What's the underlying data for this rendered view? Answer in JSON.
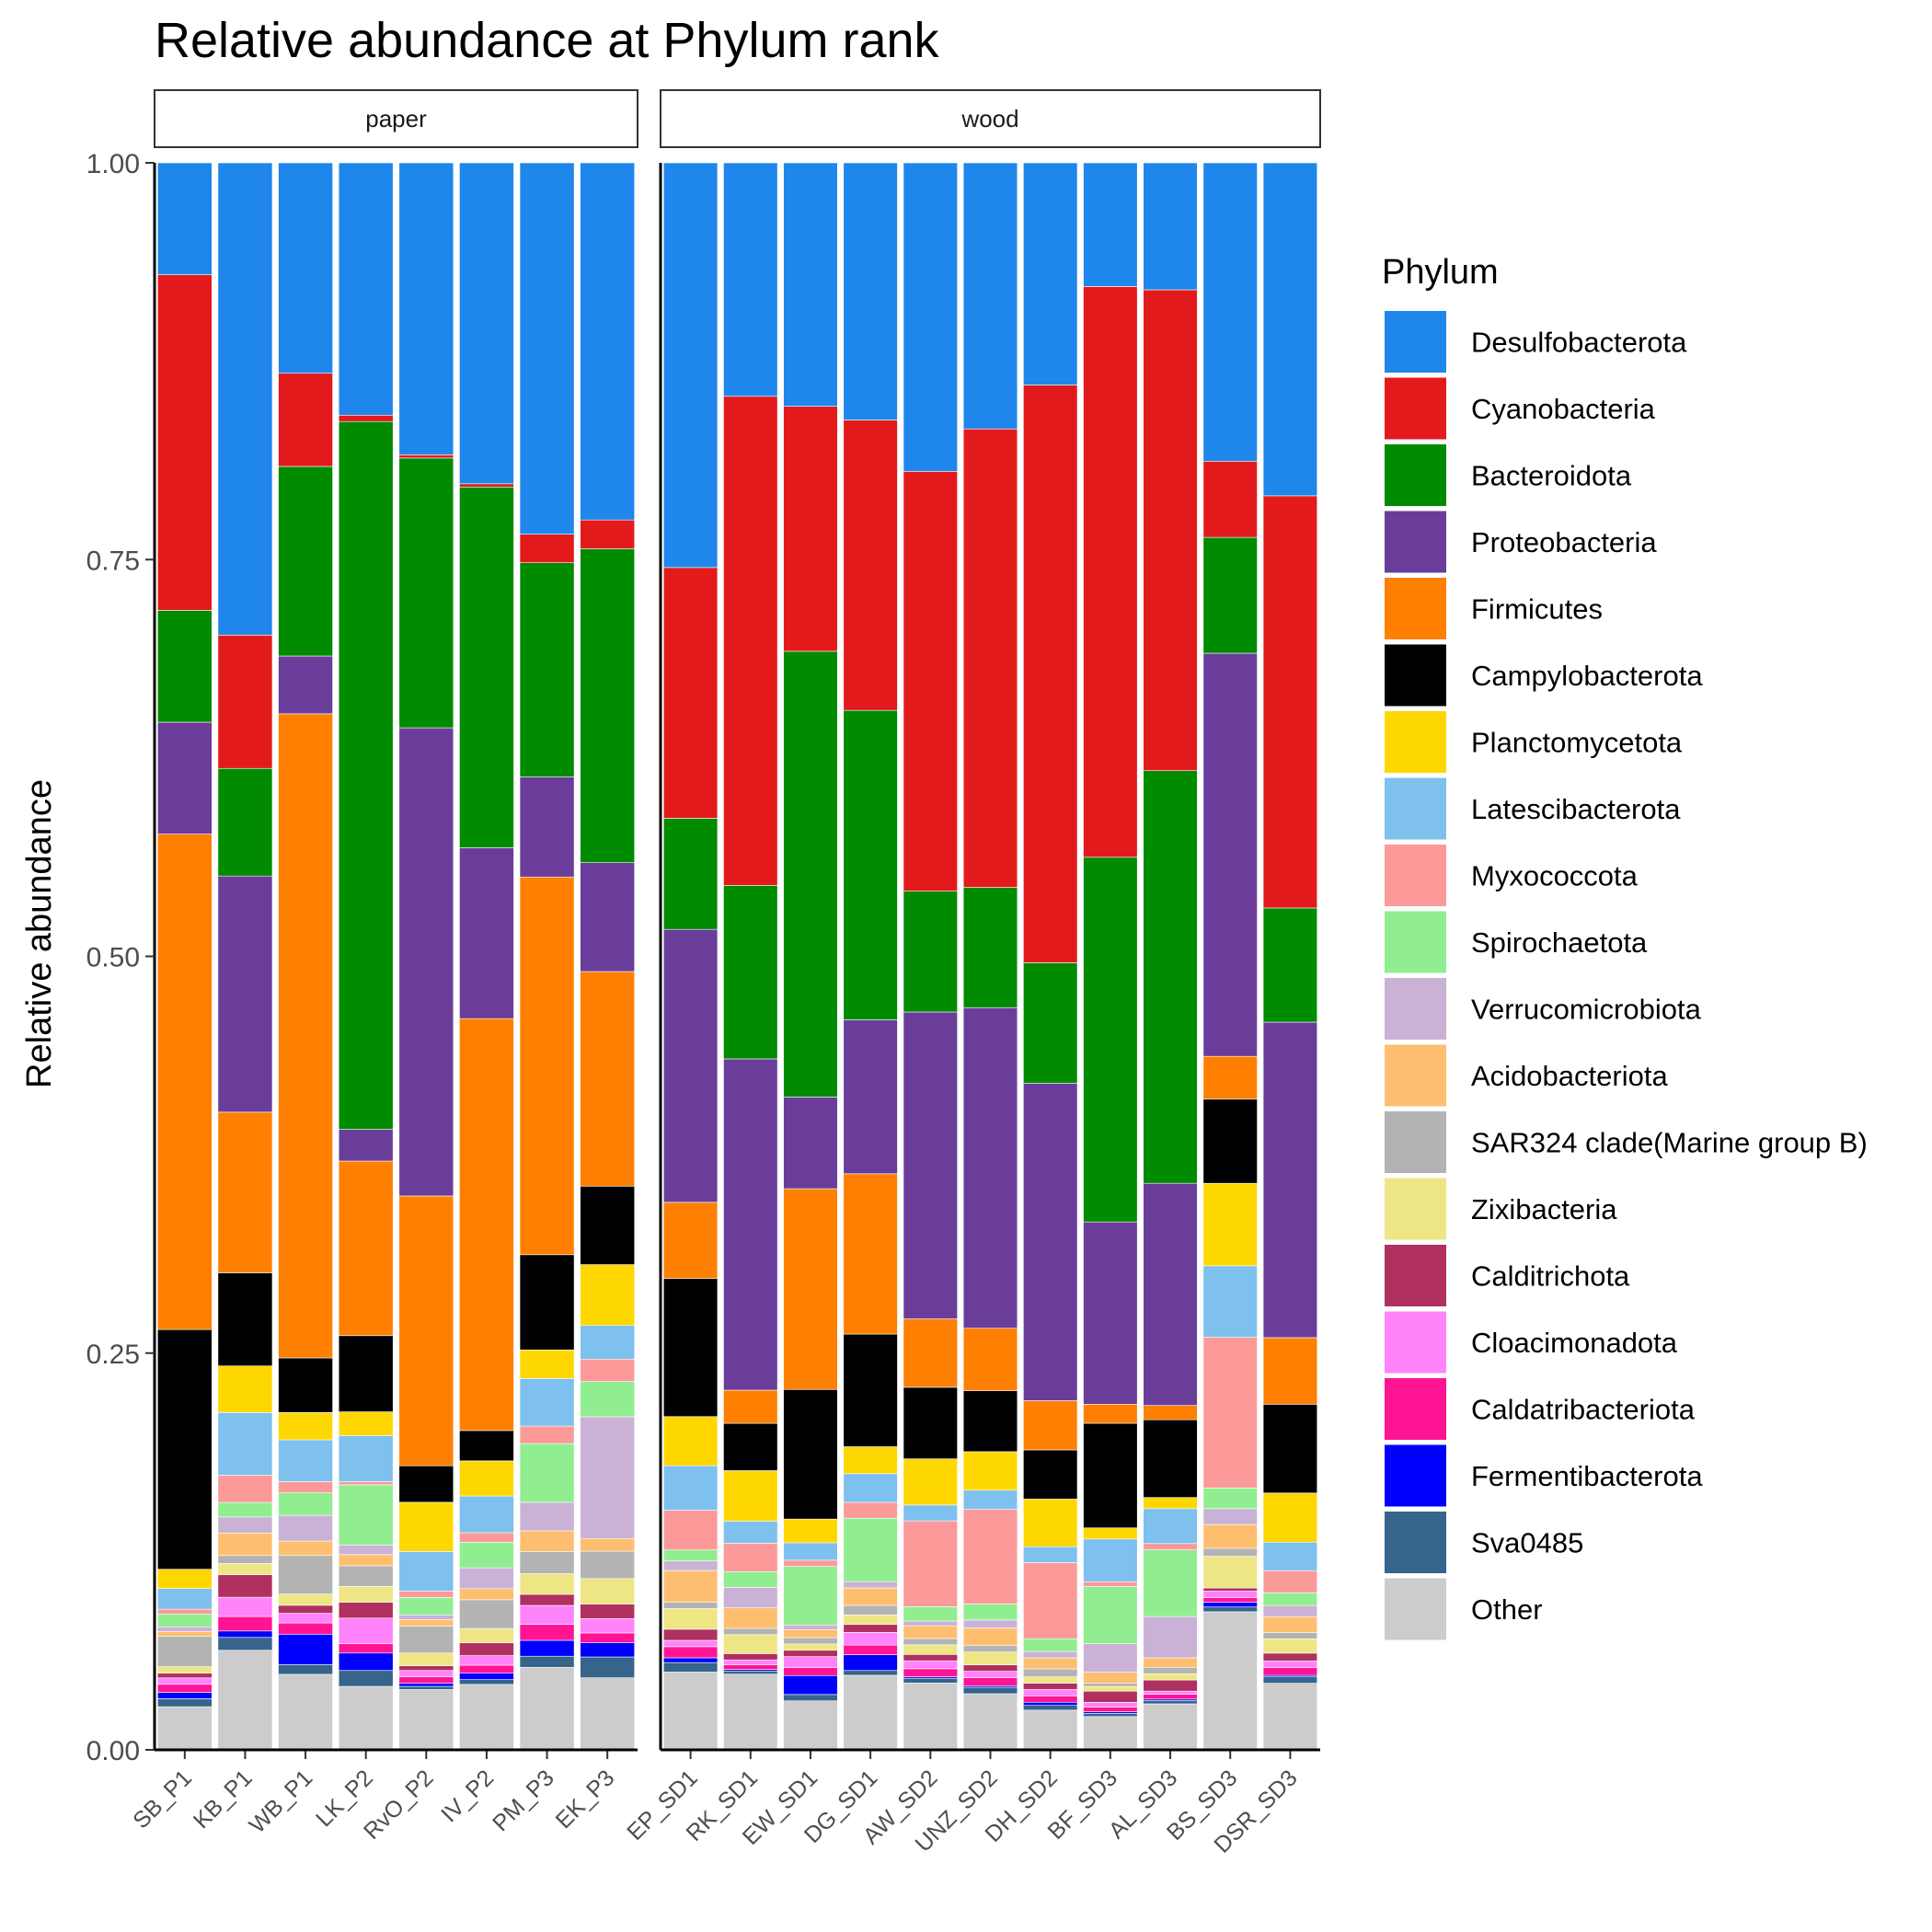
{
  "chart_data": {
    "type": "bar",
    "stacked": true,
    "title": "Relative abundance at Phylum rank",
    "ylabel": "Relative abundance",
    "xlabel": "",
    "ylim": [
      0,
      1
    ],
    "yticks": [
      "0.00",
      "0.25",
      "0.50",
      "0.75",
      "1.00"
    ],
    "grid": false,
    "legend": {
      "title": "Phylum",
      "placement": "right"
    },
    "stack_order_bottom_to_top": [
      "Other",
      "Sva0485",
      "Fermentibacterota",
      "Caldatribacteriota",
      "Cloacimonadota",
      "Calditrichota",
      "Zixibacteria",
      "SAR324 clade(Marine group B)",
      "Acidobacteriota",
      "Verrucomicrobiota",
      "Spirochaetota",
      "Myxococcota",
      "Latescibacterota",
      "Planctomycetota",
      "Campylobacterota",
      "Firmicutes",
      "Proteobacteria",
      "Bacteroidota",
      "Cyanobacteria",
      "Desulfobacterota"
    ],
    "series": [
      {
        "name": "Desulfobacterota",
        "color": "#1F86EC"
      },
      {
        "name": "Cyanobacteria",
        "color": "#E31A1C"
      },
      {
        "name": "Bacteroidota",
        "color": "#008B00"
      },
      {
        "name": "Proteobacteria",
        "color": "#6A3D9A"
      },
      {
        "name": "Firmicutes",
        "color": "#FF7F00"
      },
      {
        "name": "Campylobacterota",
        "color": "#000000"
      },
      {
        "name": "Planctomycetota",
        "color": "#FFD700"
      },
      {
        "name": "Latescibacterota",
        "color": "#7EC0EE"
      },
      {
        "name": "Myxococcota",
        "color": "#FB9A99"
      },
      {
        "name": "Spirochaetota",
        "color": "#90EE90"
      },
      {
        "name": "Verrucomicrobiota",
        "color": "#CAB2D6"
      },
      {
        "name": "Acidobacteriota",
        "color": "#FDBF6F"
      },
      {
        "name": "SAR324 clade(Marine group B)",
        "color": "#B3B3B3"
      },
      {
        "name": "Zixibacteria",
        "color": "#EEE685"
      },
      {
        "name": "Calditrichota",
        "color": "#B03060"
      },
      {
        "name": "Cloacimonadota",
        "color": "#FF83FA"
      },
      {
        "name": "Caldatribacteriota",
        "color": "#FF1493"
      },
      {
        "name": "Fermentibacterota",
        "color": "#0000FF"
      },
      {
        "name": "Sva0485",
        "color": "#36648B"
      },
      {
        "name": "Other",
        "color": "#CCCCCC"
      }
    ],
    "panels": [
      {
        "label": "paper",
        "samples": [
          {
            "name": "SB_P1",
            "values": {
              "Other": 0.027,
              "Sva0485": 0.005,
              "Fermentibacterota": 0.004,
              "Caldatribacteriota": 0.005,
              "Cloacimonadota": 0.004,
              "Calditrichota": 0.003,
              "Zixibacteria": 0.004,
              "SAR324 clade(Marine group B)": 0.019,
              "Acidobacteriota": 0.003,
              "Verrucomicrobiota": 0.003,
              "Spirochaetota": 0.008,
              "Myxococcota": 0.003,
              "Latescibacterota": 0.013,
              "Planctomycetota": 0.012,
              "Campylobacterota": 0.15,
              "Firmicutes": 0.31,
              "Proteobacteria": 0.07,
              "Bacteroidota": 0.07,
              "Cyanobacteria": 0.21,
              "Desulfobacterota": 0.07
            }
          },
          {
            "name": "KB_P1",
            "values": {
              "Other": 0.062,
              "Sva0485": 0.008,
              "Fermentibacterota": 0.004,
              "Caldatribacteriota": 0.009,
              "Cloacimonadota": 0.012,
              "Calditrichota": 0.014,
              "Zixibacteria": 0.007,
              "SAR324 clade(Marine group B)": 0.005,
              "Acidobacteriota": 0.014,
              "Verrucomicrobiota": 0.01,
              "Spirochaetota": 0.009,
              "Myxococcota": 0.017,
              "Latescibacterota": 0.039,
              "Planctomycetota": 0.029,
              "Campylobacterota": 0.058,
              "Firmicutes": 0.1,
              "Proteobacteria": 0.147,
              "Bacteroidota": 0.067,
              "Cyanobacteria": 0.083,
              "Desulfobacterota": 0.294
            }
          },
          {
            "name": "WB_P1",
            "values": {
              "Other": 0.047,
              "Sva0485": 0.006,
              "Fermentibacterota": 0.019,
              "Caldatribacteriota": 0.007,
              "Cloacimonadota": 0.006,
              "Calditrichota": 0.005,
              "Zixibacteria": 0.007,
              "SAR324 clade(Marine group B)": 0.024,
              "Acidobacteriota": 0.009,
              "Verrucomicrobiota": 0.016,
              "Spirochaetota": 0.014,
              "Myxococcota": 0.007,
              "Latescibacterota": 0.026,
              "Planctomycetota": 0.017,
              "Campylobacterota": 0.034,
              "Firmicutes": 0.401,
              "Proteobacteria": 0.036,
              "Bacteroidota": 0.118,
              "Cyanobacteria": 0.058,
              "Desulfobacterota": 0.131
            }
          },
          {
            "name": "LK_P2",
            "values": {
              "Other": 0.04,
              "Sva0485": 0.01,
              "Fermentibacterota": 0.011,
              "Caldatribacteriota": 0.006,
              "Cloacimonadota": 0.016,
              "Calditrichota": 0.01,
              "Zixibacteria": 0.01,
              "SAR324 clade(Marine group B)": 0.013,
              "Acidobacteriota": 0.007,
              "Verrucomicrobiota": 0.006,
              "Spirochaetota": 0.038,
              "Myxococcota": 0.002,
              "Latescibacterota": 0.029,
              "Planctomycetota": 0.015,
              "Campylobacterota": 0.048,
              "Firmicutes": 0.11,
              "Proteobacteria": 0.02,
              "Bacteroidota": 0.446,
              "Cyanobacteria": 0.004,
              "Desulfobacterota": 0.159
            }
          },
          {
            "name": "RvO_P2",
            "values": {
              "Other": 0.038,
              "Sva0485": 0.002,
              "Fermentibacterota": 0.002,
              "Caldatribacteriota": 0.004,
              "Cloacimonadota": 0.004,
              "Calditrichota": 0.003,
              "Zixibacteria": 0.008,
              "SAR324 clade(Marine group B)": 0.017,
              "Acidobacteriota": 0.004,
              "Verrucomicrobiota": 0.003,
              "Spirochaetota": 0.011,
              "Myxococcota": 0.004,
              "Latescibacterota": 0.025,
              "Planctomycetota": 0.031,
              "Campylobacterota": 0.023,
              "Firmicutes": 0.17,
              "Proteobacteria": 0.295,
              "Bacteroidota": 0.17,
              "Cyanobacteria": 0.002,
              "Desulfobacterota": 0.184
            }
          },
          {
            "name": "IV_P2",
            "values": {
              "Other": 0.041,
              "Sva0485": 0.003,
              "Fermentibacterota": 0.004,
              "Caldatribacteriota": 0.005,
              "Cloacimonadota": 0.006,
              "Calditrichota": 0.008,
              "Zixibacteria": 0.009,
              "SAR324 clade(Marine group B)": 0.018,
              "Acidobacteriota": 0.007,
              "Verrucomicrobiota": 0.013,
              "Spirochaetota": 0.016,
              "Myxococcota": 0.006,
              "Latescibacterota": 0.023,
              "Planctomycetota": 0.022,
              "Campylobacterota": 0.019,
              "Firmicutes": 0.258,
              "Proteobacteria": 0.107,
              "Bacteroidota": 0.226,
              "Cyanobacteria": 0.002,
              "Desulfobacterota": 0.201
            }
          },
          {
            "name": "PM_P3",
            "values": {
              "Other": 0.052,
              "Sva0485": 0.007,
              "Fermentibacterota": 0.01,
              "Caldatribacteriota": 0.01,
              "Cloacimonadota": 0.012,
              "Calditrichota": 0.007,
              "Zixibacteria": 0.013,
              "SAR324 clade(Marine group B)": 0.014,
              "Acidobacteriota": 0.013,
              "Verrucomicrobiota": 0.018,
              "Spirochaetota": 0.037,
              "Myxococcota": 0.011,
              "Latescibacterota": 0.03,
              "Planctomycetota": 0.018,
              "Campylobacterota": 0.06,
              "Firmicutes": 0.238,
              "Proteobacteria": 0.063,
              "Bacteroidota": 0.135,
              "Cyanobacteria": 0.018,
              "Desulfobacterota": 0.234
            }
          },
          {
            "name": "EK_P3",
            "values": {
              "Other": 0.045,
              "Sva0485": 0.013,
              "Fermentibacterota": 0.009,
              "Caldatribacteriota": 0.006,
              "Cloacimonadota": 0.009,
              "Calditrichota": 0.009,
              "Zixibacteria": 0.016,
              "SAR324 clade(Marine group B)": 0.017,
              "Acidobacteriota": 0.008,
              "Verrucomicrobiota": 0.076,
              "Spirochaetota": 0.022,
              "Myxococcota": 0.014,
              "Latescibacterota": 0.021,
              "Planctomycetota": 0.038,
              "Campylobacterota": 0.049,
              "Firmicutes": 0.134,
              "Proteobacteria": 0.068,
              "Bacteroidota": 0.196,
              "Cyanobacteria": 0.018,
              "Desulfobacterota": 0.223
            }
          }
        ]
      },
      {
        "label": "wood",
        "samples": [
          {
            "name": "EP_SD1",
            "values": {
              "Other": 0.049,
              "Sva0485": 0.006,
              "Fermentibacterota": 0.003,
              "Caldatribacteriota": 0.007,
              "Cloacimonadota": 0.004,
              "Calditrichota": 0.007,
              "Zixibacteria": 0.013,
              "SAR324 clade(Marine group B)": 0.004,
              "Acidobacteriota": 0.02,
              "Verrucomicrobiota": 0.006,
              "Spirochaetota": 0.007,
              "Myxococcota": 0.025,
              "Latescibacterota": 0.028,
              "Planctomycetota": 0.031,
              "Campylobacterota": 0.087,
              "Firmicutes": 0.048,
              "Proteobacteria": 0.172,
              "Bacteroidota": 0.07,
              "Cyanobacteria": 0.158,
              "Desulfobacterota": 0.255
            }
          },
          {
            "name": "RK_SD1",
            "values": {
              "Other": 0.048,
              "Sva0485": 0.002,
              "Fermentibacterota": 0.001,
              "Caldatribacteriota": 0.003,
              "Cloacimonadota": 0.003,
              "Calditrichota": 0.004,
              "Zixibacteria": 0.012,
              "SAR324 clade(Marine group B)": 0.004,
              "Acidobacteriota": 0.013,
              "Verrucomicrobiota": 0.013,
              "Spirochaetota": 0.01,
              "Myxococcota": 0.018,
              "Latescibacterota": 0.014,
              "Planctomycetota": 0.032,
              "Campylobacterota": 0.03,
              "Firmicutes": 0.021,
              "Proteobacteria": 0.21,
              "Bacteroidota": 0.11,
              "Cyanobacteria": 0.31,
              "Desulfobacterota": 0.148
            }
          },
          {
            "name": "EW_SD1",
            "values": {
              "Other": 0.031,
              "Sva0485": 0.004,
              "Fermentibacterota": 0.012,
              "Caldatribacteriota": 0.005,
              "Cloacimonadota": 0.007,
              "Calditrichota": 0.004,
              "Zixibacteria": 0.004,
              "SAR324 clade(Marine group B)": 0.004,
              "Acidobacteriota": 0.005,
              "Verrucomicrobiota": 0.003,
              "Spirochaetota": 0.037,
              "Myxococcota": 0.004,
              "Latescibacterota": 0.011,
              "Planctomycetota": 0.015,
              "Campylobacterota": 0.082,
              "Firmicutes": 0.127,
              "Proteobacteria": 0.058,
              "Bacteroidota": 0.282,
              "Cyanobacteria": 0.155,
              "Desulfobacterota": 0.154
            }
          },
          {
            "name": "DG_SD1",
            "values": {
              "Other": 0.047,
              "Sva0485": 0.003,
              "Fermentibacterota": 0.01,
              "Caldatribacteriota": 0.006,
              "Cloacimonadota": 0.008,
              "Calditrichota": 0.005,
              "Zixibacteria": 0.006,
              "SAR324 clade(Marine group B)": 0.006,
              "Acidobacteriota": 0.011,
              "Verrucomicrobiota": 0.004,
              "Spirochaetota": 0.04,
              "Myxococcota": 0.01,
              "Latescibacterota": 0.018,
              "Planctomycetota": 0.017,
              "Campylobacterota": 0.071,
              "Firmicutes": 0.101,
              "Proteobacteria": 0.097,
              "Bacteroidota": 0.195,
              "Cyanobacteria": 0.183,
              "Desulfobacterota": 0.162
            }
          },
          {
            "name": "AW_SD2",
            "values": {
              "Other": 0.042,
              "Sva0485": 0.003,
              "Fermentibacterota": 0.001,
              "Caldatribacteriota": 0.005,
              "Cloacimonadota": 0.005,
              "Calditrichota": 0.004,
              "Zixibacteria": 0.006,
              "SAR324 clade(Marine group B)": 0.004,
              "Acidobacteriota": 0.008,
              "Verrucomicrobiota": 0.003,
              "Spirochaetota": 0.009,
              "Myxococcota": 0.054,
              "Latescibacterota": 0.01,
              "Planctomycetota": 0.029,
              "Campylobacterota": 0.045,
              "Firmicutes": 0.043,
              "Proteobacteria": 0.193,
              "Bacteroidota": 0.076,
              "Cyanobacteria": 0.264,
              "Desulfobacterota": 0.194
            }
          },
          {
            "name": "UNZ_SD2",
            "values": {
              "Other": 0.035,
              "Sva0485": 0.004,
              "Fermentibacterota": 0.001,
              "Caldatribacteriota": 0.005,
              "Cloacimonadota": 0.004,
              "Calditrichota": 0.004,
              "Zixibacteria": 0.008,
              "SAR324 clade(Marine group B)": 0.004,
              "Acidobacteriota": 0.011,
              "Verrucomicrobiota": 0.005,
              "Spirochaetota": 0.01,
              "Myxococcota": 0.059,
              "Latescibacterota": 0.012,
              "Planctomycetota": 0.024,
              "Campylobacterota": 0.038,
              "Firmicutes": 0.039,
              "Proteobacteria": 0.2,
              "Bacteroidota": 0.075,
              "Cyanobacteria": 0.286,
              "Desulfobacterota": 0.166
            }
          },
          {
            "name": "DH_SD2",
            "values": {
              "Other": 0.025,
              "Sva0485": 0.003,
              "Fermentibacterota": 0.002,
              "Caldatribacteriota": 0.004,
              "Cloacimonadota": 0.004,
              "Calditrichota": 0.004,
              "Zixibacteria": 0.004,
              "SAR324 clade(Marine group B)": 0.005,
              "Acidobacteriota": 0.007,
              "Verrucomicrobiota": 0.004,
              "Spirochaetota": 0.008,
              "Myxococcota": 0.048,
              "Latescibacterota": 0.01,
              "Planctomycetota": 0.03,
              "Campylobacterota": 0.031,
              "Firmicutes": 0.031,
              "Proteobacteria": 0.2,
              "Bacteroidota": 0.076,
              "Cyanobacteria": 0.364,
              "Desulfobacterota": 0.14
            }
          },
          {
            "name": "BF_SD3",
            "values": {
              "Other": 0.021,
              "Sva0485": 0.002,
              "Fermentibacterota": 0.001,
              "Caldatribacteriota": 0.003,
              "Cloacimonadota": 0.003,
              "Calditrichota": 0.007,
              "Zixibacteria": 0.003,
              "SAR324 clade(Marine group B)": 0.002,
              "Acidobacteriota": 0.007,
              "Verrucomicrobiota": 0.018,
              "Spirochaetota": 0.036,
              "Myxococcota": 0.003,
              "Latescibacterota": 0.027,
              "Planctomycetota": 0.007,
              "Campylobacterota": 0.066,
              "Firmicutes": 0.012,
              "Proteobacteria": 0.115,
              "Bacteroidota": 0.23,
              "Cyanobacteria": 0.36,
              "Desulfobacterota": 0.078
            }
          },
          {
            "name": "AL_SD3",
            "values": {
              "Other": 0.029,
              "Sva0485": 0.002,
              "Fermentibacterota": 0.001,
              "Caldatribacteriota": 0.003,
              "Cloacimonadota": 0.002,
              "Calditrichota": 0.007,
              "Zixibacteria": 0.004,
              "SAR324 clade(Marine group B)": 0.004,
              "Acidobacteriota": 0.006,
              "Verrucomicrobiota": 0.026,
              "Spirochaetota": 0.042,
              "Myxococcota": 0.004,
              "Latescibacterota": 0.022,
              "Planctomycetota": 0.007,
              "Campylobacterota": 0.049,
              "Firmicutes": 0.009,
              "Proteobacteria": 0.14,
              "Bacteroidota": 0.26,
              "Cyanobacteria": 0.303,
              "Desulfobacterota": 0.08
            }
          },
          {
            "name": "BS_SD3",
            "values": {
              "Other": 0.087,
              "Sva0485": 0.003,
              "Fermentibacterota": 0.003,
              "Caldatribacteriota": 0.003,
              "Cloacimonadota": 0.004,
              "Calditrichota": 0.002,
              "Zixibacteria": 0.02,
              "SAR324 clade(Marine group B)": 0.005,
              "Acidobacteriota": 0.015,
              "Verrucomicrobiota": 0.01,
              "Spirochaetota": 0.013,
              "Myxococcota": 0.095,
              "Latescibacterota": 0.045,
              "Planctomycetota": 0.052,
              "Campylobacterota": 0.053,
              "Firmicutes": 0.027,
              "Proteobacteria": 0.254,
              "Bacteroidota": 0.073,
              "Cyanobacteria": 0.048,
              "Desulfobacterota": 0.188
            }
          },
          {
            "name": "DSR_SD3",
            "values": {
              "Other": 0.042,
              "Sva0485": 0.004,
              "Fermentibacterota": 0.001,
              "Caldatribacteriota": 0.005,
              "Cloacimonadota": 0.004,
              "Calditrichota": 0.005,
              "Zixibacteria": 0.009,
              "SAR324 clade(Marine group B)": 0.004,
              "Acidobacteriota": 0.01,
              "Verrucomicrobiota": 0.007,
              "Spirochaetota": 0.008,
              "Myxococcota": 0.014,
              "Latescibacterota": 0.018,
              "Planctomycetota": 0.031,
              "Campylobacterota": 0.056,
              "Firmicutes": 0.042,
              "Proteobacteria": 0.199,
              "Bacteroidota": 0.072,
              "Cyanobacteria": 0.26,
              "Desulfobacterota": 0.21
            }
          }
        ]
      }
    ]
  }
}
